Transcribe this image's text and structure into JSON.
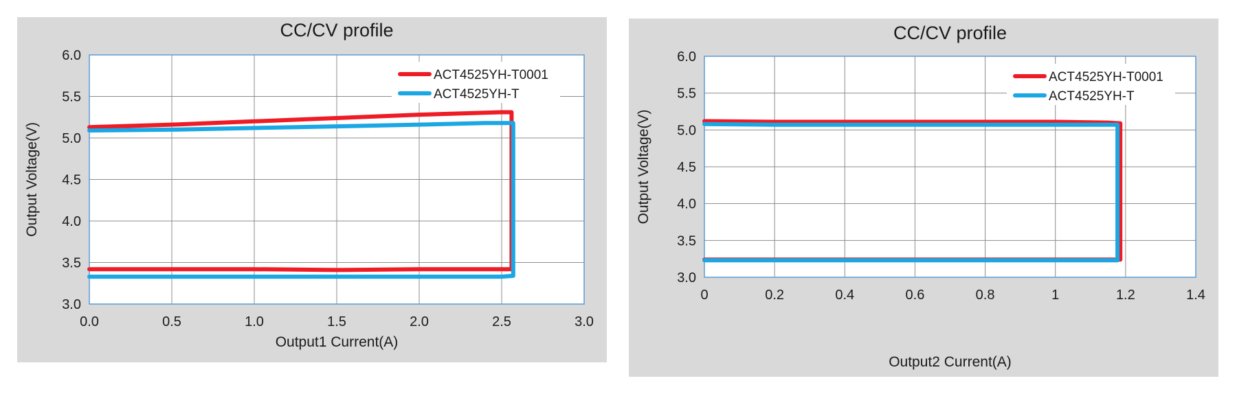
{
  "colors": {
    "red": "#ee1c25",
    "blue": "#1aa7e3",
    "panel": "#d9d9d9",
    "plot": "#ffffff",
    "grid": "#8c8c8c",
    "frame": "#5b9bd5"
  },
  "chart_data": [
    {
      "type": "line",
      "title": "CC/CV profile",
      "xlabel": "Output1 Current(A)",
      "ylabel": "Output Voltage(V)",
      "xlim": [
        0,
        3.0
      ],
      "ylim": [
        3.0,
        6.0
      ],
      "xticks": [
        "0.0",
        "0.5",
        "1.0",
        "1.5",
        "2.0",
        "2.5",
        "3.0"
      ],
      "yticks": [
        "3.0",
        "3.5",
        "4.0",
        "4.5",
        "5.0",
        "5.5",
        "6.0"
      ],
      "grid": true,
      "legend_position": "top-right",
      "series": [
        {
          "name": "ACT4525YH-T0001",
          "color": "#ee1c25",
          "x": [
            0,
            0.5,
            1.0,
            1.5,
            2.0,
            2.5,
            2.56,
            2.56,
            2.56,
            2.5,
            2.0,
            1.5,
            1.0,
            0.5,
            0
          ],
          "y": [
            5.13,
            5.16,
            5.2,
            5.24,
            5.28,
            5.31,
            5.31,
            4.0,
            3.42,
            3.42,
            3.42,
            3.41,
            3.42,
            3.42,
            3.42
          ]
        },
        {
          "name": "ACT4525YH-T",
          "color": "#1aa7e3",
          "x": [
            0,
            0.5,
            1.0,
            1.5,
            2.0,
            2.4,
            2.57,
            2.57,
            2.57,
            2.5,
            2.0,
            1.5,
            1.0,
            0.5,
            0
          ],
          "y": [
            5.09,
            5.1,
            5.12,
            5.14,
            5.16,
            5.18,
            5.18,
            4.0,
            3.34,
            3.33,
            3.33,
            3.33,
            3.33,
            3.33,
            3.33
          ]
        }
      ]
    },
    {
      "type": "line",
      "title": "CC/CV profile",
      "xlabel": "Output2 Current(A)",
      "ylabel": "Output Voltage(V)",
      "xlim": [
        0,
        1.4
      ],
      "ylim": [
        3.0,
        6.0
      ],
      "xticks": [
        "0",
        "0.2",
        "0.4",
        "0.6",
        "0.8",
        "1",
        "1.2",
        "1.4"
      ],
      "yticks": [
        "3.0",
        "3.5",
        "4.0",
        "4.5",
        "5.0",
        "5.5",
        "6.0"
      ],
      "grid": true,
      "legend_position": "top-right",
      "series": [
        {
          "name": "ACT4525YH-T0001",
          "color": "#ee1c25",
          "x": [
            0,
            0.2,
            0.4,
            0.6,
            0.8,
            1.0,
            1.15,
            1.185,
            1.185,
            1.185,
            1.0,
            0.5,
            0
          ],
          "y": [
            5.12,
            5.11,
            5.11,
            5.11,
            5.11,
            5.11,
            5.1,
            5.09,
            4.0,
            3.24,
            3.24,
            3.24,
            3.24
          ]
        },
        {
          "name": "ACT4525YH-T",
          "color": "#1aa7e3",
          "x": [
            0,
            0.2,
            0.4,
            0.6,
            0.8,
            1.0,
            1.15,
            1.177,
            1.177,
            1.177,
            1.0,
            0.5,
            0
          ],
          "y": [
            5.08,
            5.07,
            5.07,
            5.07,
            5.07,
            5.07,
            5.07,
            5.07,
            4.0,
            3.23,
            3.23,
            3.23,
            3.23
          ]
        }
      ]
    }
  ]
}
